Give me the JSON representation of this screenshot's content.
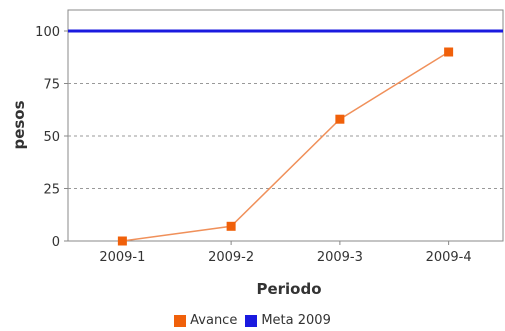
{
  "chart_data": {
    "type": "line",
    "categories": [
      "2009-1",
      "2009-2",
      "2009-3",
      "2009-4"
    ],
    "series": [
      {
        "name": "Avance",
        "values": [
          0,
          7,
          58,
          90
        ],
        "color": "#f0600a",
        "line_color": "#f0905a",
        "marker": "square"
      },
      {
        "name": "Meta 2009",
        "values": [
          100,
          100,
          100,
          100
        ],
        "color": "#1a1adf",
        "style": "horizontal-line"
      }
    ],
    "xlabel": "Periodo",
    "ylabel": "pesos",
    "ylim": [
      0,
      110
    ],
    "yticks": [
      0,
      25,
      50,
      75,
      100
    ],
    "grid": "horizontal dashed",
    "legend": "bottom"
  }
}
